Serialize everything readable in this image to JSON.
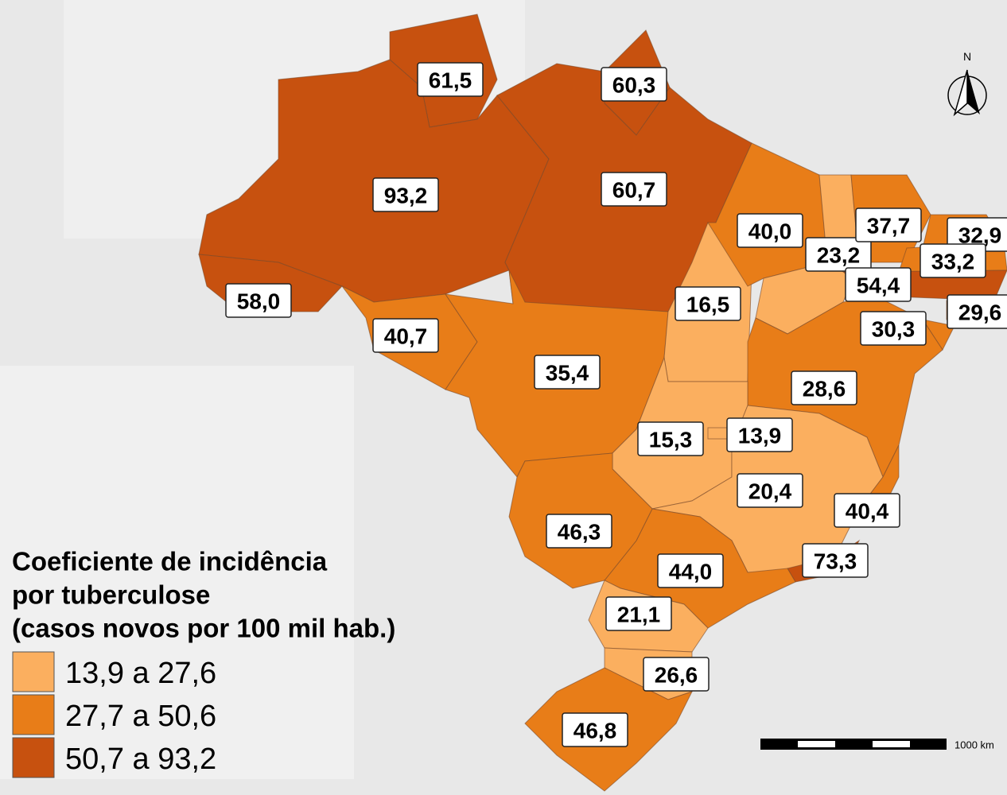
{
  "legend": {
    "title": [
      "Coeficiente de incidência",
      "por tuberculose",
      "(casos novos por 100 mil hab.)"
    ],
    "classes": [
      {
        "label": "13,9 a 27,6",
        "color": "#fbaf5f"
      },
      {
        "label": "27,7 a 50,6",
        "color": "#e87d18"
      },
      {
        "label": "50,7 a 93,2",
        "color": "#c7510f"
      }
    ]
  },
  "states": [
    {
      "label": "61,5",
      "color": "#c7510f"
    },
    {
      "label": "93,2",
      "color": "#c7510f"
    },
    {
      "label": "58,0",
      "color": "#c7510f"
    },
    {
      "label": "60,3",
      "color": "#c7510f"
    },
    {
      "label": "60,7",
      "color": "#c7510f"
    },
    {
      "label": "40,7",
      "color": "#e87d18"
    },
    {
      "label": "35,4",
      "color": "#e87d18"
    },
    {
      "label": "16,5",
      "color": "#fbaf5f"
    },
    {
      "label": "40,0",
      "color": "#e87d18"
    },
    {
      "label": "23,2",
      "color": "#fbaf5f"
    },
    {
      "label": "37,7",
      "color": "#e87d18"
    },
    {
      "label": "32,9",
      "color": "#e87d18"
    },
    {
      "label": "33,2",
      "color": "#e87d18"
    },
    {
      "label": "54,4",
      "color": "#c7510f"
    },
    {
      "label": "29,6",
      "color": "#e87d18"
    },
    {
      "label": "30,3",
      "color": "#e87d18"
    },
    {
      "label": "28,6",
      "color": "#e87d18"
    },
    {
      "label": "15,3",
      "color": "#fbaf5f"
    },
    {
      "label": "13,9",
      "color": "#fbaf5f"
    },
    {
      "label": "20,4",
      "color": "#fbaf5f"
    },
    {
      "label": "40,4",
      "color": "#e87d18"
    },
    {
      "label": "73,3",
      "color": "#c7510f"
    },
    {
      "label": "44,0",
      "color": "#e87d18"
    },
    {
      "label": "46,3",
      "color": "#e87d18"
    },
    {
      "label": "21,1",
      "color": "#fbaf5f"
    },
    {
      "label": "26,6",
      "color": "#fbaf5f"
    },
    {
      "label": "46,8",
      "color": "#e87d18"
    }
  ],
  "north": "N",
  "scale_label": "1000 km"
}
